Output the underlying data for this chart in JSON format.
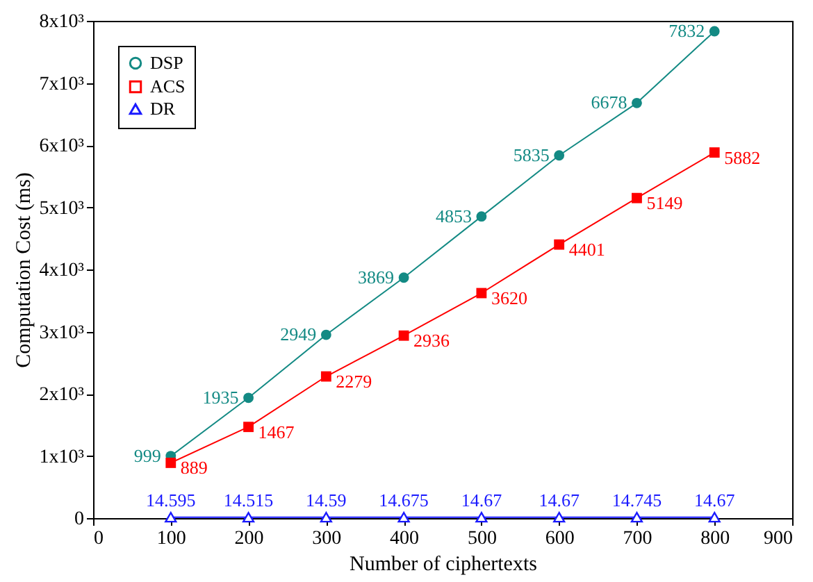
{
  "chart_data": {
    "type": "line",
    "xlabel": "Number of ciphertexts",
    "ylabel": "Computation Cost (ms)",
    "x": [
      100,
      200,
      300,
      400,
      500,
      600,
      700,
      800
    ],
    "series": [
      {
        "name": "DSP",
        "color": "#138a84",
        "marker": "circle",
        "values": [
          999,
          1935,
          2949,
          3869,
          4853,
          5835,
          6678,
          7832
        ]
      },
      {
        "name": "ACS",
        "color": "#ff0000",
        "marker": "square",
        "values": [
          889,
          1467,
          2279,
          2936,
          3620,
          4401,
          5149,
          5882
        ]
      },
      {
        "name": "DR",
        "color": "#1a1aff",
        "marker": "triangle",
        "values": [
          14.595,
          14.515,
          14.59,
          14.675,
          14.67,
          14.67,
          14.745,
          14.67
        ]
      }
    ],
    "xlim": [
      0,
      900
    ],
    "xticks": [
      0,
      100,
      200,
      300,
      400,
      500,
      600,
      700,
      800,
      900
    ],
    "ylim": [
      0,
      8000
    ],
    "yticks": [
      0,
      {
        "value": 1000,
        "label": "1x10³"
      },
      {
        "value": 2000,
        "label": "2x10³"
      },
      {
        "value": 3000,
        "label": "3x10³"
      },
      {
        "value": 4000,
        "label": "4x10³"
      },
      {
        "value": 5000,
        "label": "5x10³"
      },
      {
        "value": 6000,
        "label": "6x10³"
      },
      {
        "value": 7000,
        "label": "7x10³"
      },
      {
        "value": 8000,
        "label": "8x10³"
      }
    ],
    "data_labels": true,
    "legend": "top left",
    "grid": false,
    "line_style": "solid"
  }
}
